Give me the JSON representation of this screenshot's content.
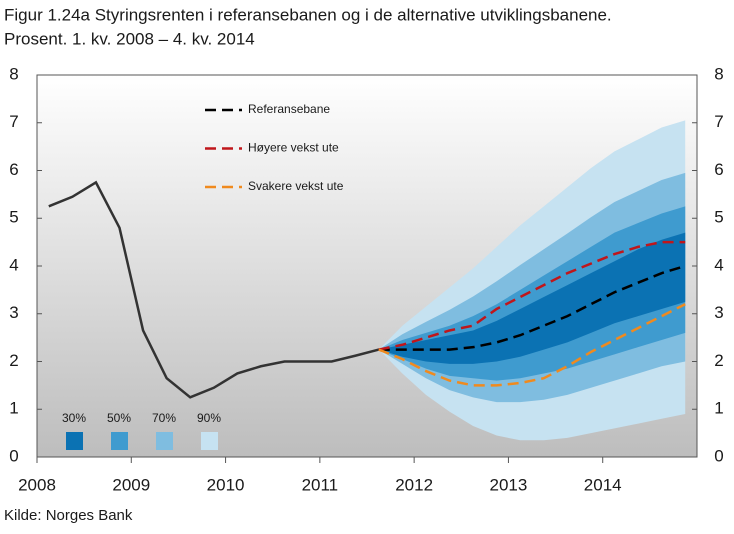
{
  "chart_data": {
    "type": "fan",
    "title": "Figur 1.24a Styringsrenten i referansebanen og i de alternative utviklingsbanene.",
    "subtitle": "Prosent. 1. kv. 2008 – 4. kv. 2014",
    "source": "Kilde: Norges Bank",
    "xlim": [
      2008,
      2015
    ],
    "xticks": [
      2008,
      2009,
      2010,
      2011,
      2012,
      2013,
      2014
    ],
    "ylim": [
      0,
      8
    ],
    "yticks": [
      0,
      1,
      2,
      3,
      4,
      5,
      6,
      7,
      8
    ],
    "y2lim": [
      0,
      8
    ],
    "y2ticks": [
      0,
      1,
      2,
      3,
      4,
      5,
      6,
      7,
      8
    ],
    "history": {
      "color": "#333333",
      "x": [
        2008.125,
        2008.375,
        2008.625,
        2008.875,
        2009.125,
        2009.375,
        2009.625,
        2009.875,
        2010.125,
        2010.375,
        2010.625,
        2010.875,
        2011.125,
        2011.375,
        2011.625
      ],
      "values": [
        5.25,
        5.45,
        5.75,
        4.8,
        2.65,
        1.65,
        1.25,
        1.45,
        1.75,
        1.9,
        2.0,
        2.0,
        2.0,
        2.12,
        2.25
      ]
    },
    "forecast_x": [
      2011.625,
      2011.875,
      2012.125,
      2012.375,
      2012.625,
      2012.875,
      2013.125,
      2013.375,
      2013.625,
      2013.875,
      2014.125,
      2014.375,
      2014.625,
      2014.875
    ],
    "bands": [
      {
        "name": "90%",
        "color": "#c6e2f1",
        "lower": [
          2.25,
          1.75,
          1.3,
          0.95,
          0.65,
          0.45,
          0.35,
          0.35,
          0.4,
          0.5,
          0.6,
          0.7,
          0.8,
          0.9
        ],
        "upper": [
          2.25,
          2.75,
          3.15,
          3.55,
          3.95,
          4.4,
          4.85,
          5.25,
          5.65,
          6.05,
          6.4,
          6.65,
          6.9,
          7.05
        ]
      },
      {
        "name": "70%",
        "color": "#7fbde0",
        "lower": [
          2.25,
          1.95,
          1.65,
          1.4,
          1.25,
          1.15,
          1.15,
          1.2,
          1.3,
          1.45,
          1.6,
          1.75,
          1.9,
          2.0
        ],
        "upper": [
          2.25,
          2.57,
          2.83,
          3.08,
          3.36,
          3.68,
          4.02,
          4.35,
          4.68,
          5.02,
          5.34,
          5.57,
          5.8,
          5.95
        ]
      },
      {
        "name": "50%",
        "color": "#3f9bcf",
        "lower": [
          2.25,
          2.05,
          1.85,
          1.7,
          1.65,
          1.6,
          1.65,
          1.75,
          1.85,
          2.0,
          2.15,
          2.3,
          2.45,
          2.6
        ],
        "upper": [
          2.25,
          2.45,
          2.6,
          2.75,
          2.95,
          3.2,
          3.5,
          3.8,
          4.1,
          4.4,
          4.7,
          4.9,
          5.1,
          5.25
        ]
      },
      {
        "name": "30%",
        "color": "#0b72b3",
        "lower": [
          2.25,
          2.1,
          2.0,
          1.95,
          1.95,
          2.0,
          2.1,
          2.25,
          2.4,
          2.6,
          2.8,
          2.95,
          3.1,
          3.25
        ],
        "upper": [
          2.25,
          2.35,
          2.45,
          2.55,
          2.65,
          2.85,
          3.1,
          3.35,
          3.6,
          3.85,
          4.1,
          4.35,
          4.55,
          4.7
        ]
      }
    ],
    "series": [
      {
        "name": "Referansebane",
        "color": "#000000",
        "values": [
          2.25,
          2.25,
          2.25,
          2.25,
          2.3,
          2.4,
          2.55,
          2.75,
          2.95,
          3.2,
          3.45,
          3.65,
          3.85,
          4.0
        ]
      },
      {
        "name": "Høyere vekst ute",
        "color": "#c0161b",
        "values": [
          2.25,
          2.35,
          2.5,
          2.65,
          2.75,
          3.1,
          3.35,
          3.6,
          3.85,
          4.05,
          4.25,
          4.4,
          4.5,
          4.5
        ]
      },
      {
        "name": "Svakere vekst ute",
        "color": "#f08a1e",
        "values": [
          2.25,
          2.05,
          1.8,
          1.6,
          1.5,
          1.5,
          1.55,
          1.65,
          1.9,
          2.2,
          2.45,
          2.7,
          2.95,
          3.2
        ]
      }
    ]
  }
}
